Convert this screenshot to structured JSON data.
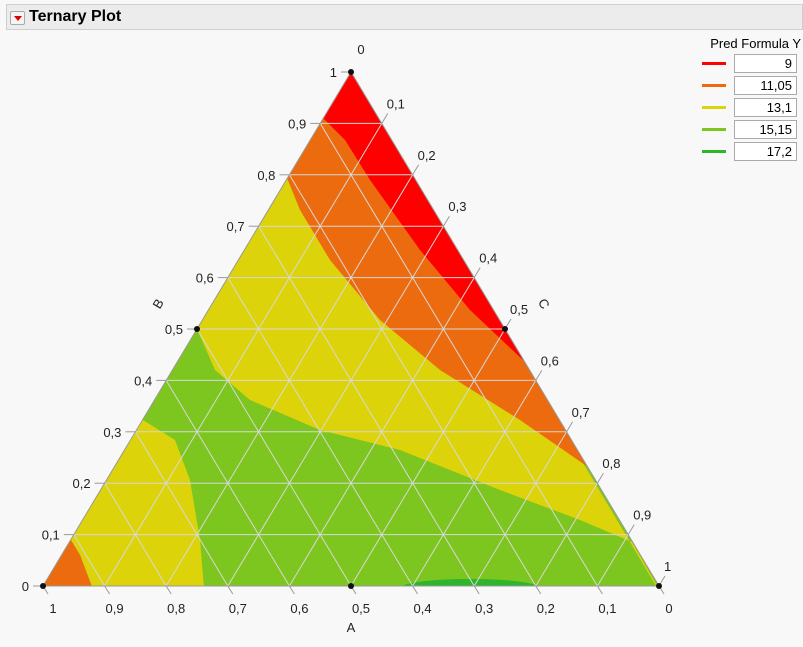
{
  "header": {
    "title": "Ternary Plot"
  },
  "legend": {
    "title": "Pred Formula Y",
    "items": [
      {
        "label": "9",
        "color": "#ff0000"
      },
      {
        "label": "11,05",
        "color": "#ec6b0e"
      },
      {
        "label": "13,1",
        "color": "#ddd30a"
      },
      {
        "label": "15,15",
        "color": "#7dc51f"
      },
      {
        "label": "17,2",
        "color": "#2db52c"
      }
    ]
  },
  "chart_data": {
    "type": "ternary-contour",
    "axes": {
      "A": "A",
      "B": "B",
      "C": "C"
    },
    "ticks": [
      "0",
      "0,1",
      "0,2",
      "0,3",
      "0,4",
      "0,5",
      "0,6",
      "0,7",
      "0,8",
      "0,9",
      "1"
    ],
    "contour_levels": [
      9,
      11.05,
      13.1,
      15.15,
      17.2
    ],
    "grid": true,
    "points": [
      {
        "A": 1,
        "B": 0,
        "C": 0
      },
      {
        "A": 0,
        "B": 1,
        "C": 0
      },
      {
        "A": 0,
        "B": 0,
        "C": 1
      },
      {
        "A": 0.5,
        "B": 0.5,
        "C": 0
      },
      {
        "A": 0,
        "B": 0.5,
        "C": 0.5
      },
      {
        "A": 0.5,
        "B": 0,
        "C": 0.5
      }
    ]
  }
}
